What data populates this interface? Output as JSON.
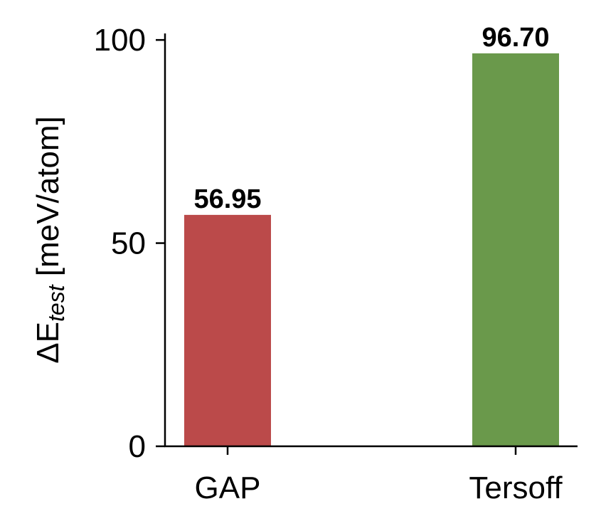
{
  "chart_data": {
    "type": "bar",
    "categories": [
      "GAP",
      "Tersoff"
    ],
    "values": [
      56.95,
      96.7
    ],
    "value_labels": [
      "56.95",
      "96.70"
    ],
    "colors": [
      "#bb4a4a",
      "#6a994b"
    ],
    "title": "",
    "xlabel": "",
    "ylabel": {
      "prefix": "ΔE",
      "subscript": "test",
      "suffix": " [meV/atom]"
    },
    "ylim": [
      0,
      101.6
    ],
    "yticks": [
      0,
      50,
      100
    ],
    "ytick_labels": [
      "0",
      "50",
      "100"
    ],
    "grid": false
  }
}
